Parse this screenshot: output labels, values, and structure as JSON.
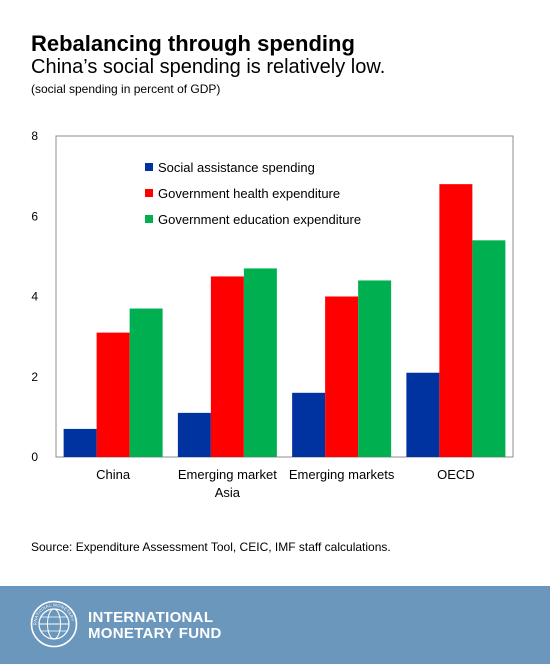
{
  "header": {
    "title": "Rebalancing through spending",
    "subtitle": "China’s social spending is relatively low.",
    "note": "(social spending in percent of GDP)"
  },
  "source": "Source: Expenditure Assessment Tool, CEIC, IMF staff calculations.",
  "footer": {
    "brand_line1": "INTERNATIONAL",
    "brand_line2": "MONETARY FUND",
    "logo": "imf-seal-icon",
    "logo_text": "INTERNATIONAL MONETARY FUND"
  },
  "chart_data": {
    "type": "bar",
    "categories": [
      [
        "China"
      ],
      [
        "Emerging market",
        "Asia"
      ],
      [
        "Emerging markets"
      ],
      [
        "OECD"
      ]
    ],
    "series": [
      {
        "name": "Social assistance spending",
        "color": "#0033a0",
        "values": [
          0.7,
          1.1,
          1.6,
          2.1
        ]
      },
      {
        "name": "Government health expenditure",
        "color": "#ff0000",
        "values": [
          3.1,
          4.5,
          4.0,
          6.8
        ]
      },
      {
        "name": "Government education expenditure",
        "color": "#00b050",
        "values": [
          3.7,
          4.7,
          4.4,
          5.4
        ]
      }
    ],
    "ylim": [
      0,
      8
    ],
    "yticks": [
      0,
      2,
      4,
      6,
      8
    ],
    "grid": false,
    "legend": "top-left"
  }
}
